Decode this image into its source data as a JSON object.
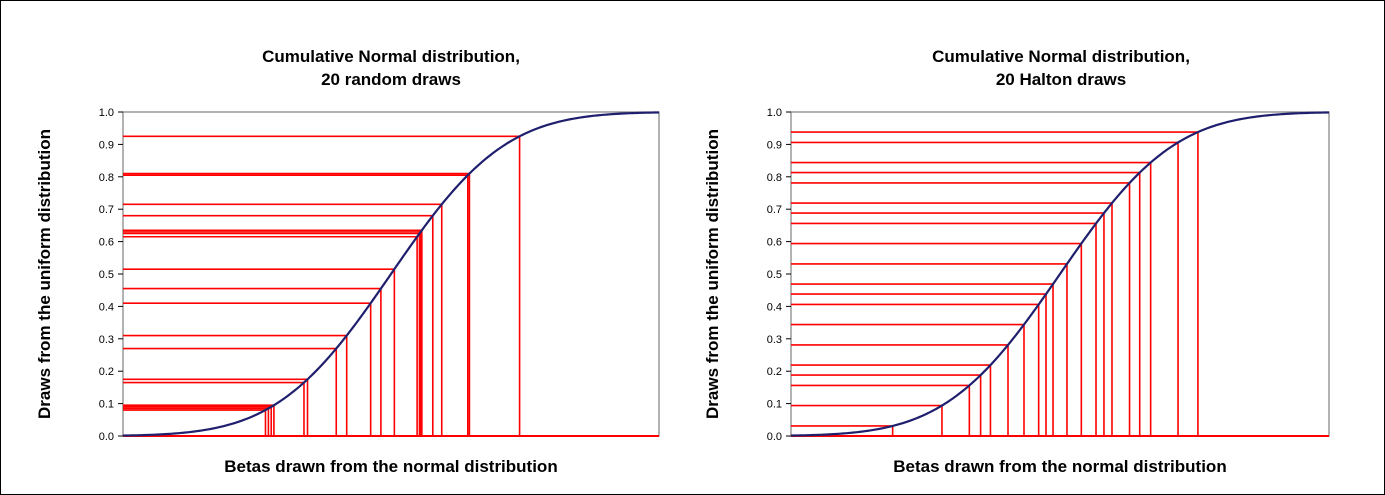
{
  "colors": {
    "curve": "#1f1f6e",
    "draw_lines": "#ff0000",
    "axis": "#808080"
  },
  "chart_data": [
    {
      "type": "line",
      "title": "Cumulative Normal distribution,",
      "subtitle": "20 random draws",
      "xlabel": "Betas drawn from the normal distribution",
      "ylabel": "Draws from the uniform distribution",
      "ylim": [
        0,
        1
      ],
      "yticks": [
        "0.0",
        "0.1",
        "0.2",
        "0.3",
        "0.4",
        "0.5",
        "0.6",
        "0.7",
        "0.8",
        "0.9",
        "1.0"
      ],
      "xlim": [
        -3,
        3
      ],
      "grid": false,
      "curve": "standard normal CDF",
      "draws": [
        0.08,
        0.085,
        0.09,
        0.095,
        0.165,
        0.175,
        0.27,
        0.31,
        0.41,
        0.455,
        0.515,
        0.615,
        0.625,
        0.63,
        0.635,
        0.68,
        0.715,
        0.805,
        0.81,
        0.925
      ]
    },
    {
      "type": "line",
      "title": "Cumulative Normal distribution,",
      "subtitle": "20 Halton draws",
      "xlabel": "Betas drawn from the normal distribution",
      "ylabel": "Draws from the uniform distribution",
      "ylim": [
        0,
        1
      ],
      "yticks": [
        "0.0",
        "0.1",
        "0.2",
        "0.3",
        "0.4",
        "0.5",
        "0.6",
        "0.7",
        "0.8",
        "0.9",
        "1.0"
      ],
      "xlim": [
        -3,
        3
      ],
      "grid": false,
      "curve": "standard normal CDF",
      "draws": [
        0.031,
        0.094,
        0.156,
        0.188,
        0.219,
        0.281,
        0.344,
        0.406,
        0.438,
        0.469,
        0.531,
        0.594,
        0.656,
        0.688,
        0.719,
        0.781,
        0.813,
        0.844,
        0.906,
        0.938
      ]
    }
  ]
}
